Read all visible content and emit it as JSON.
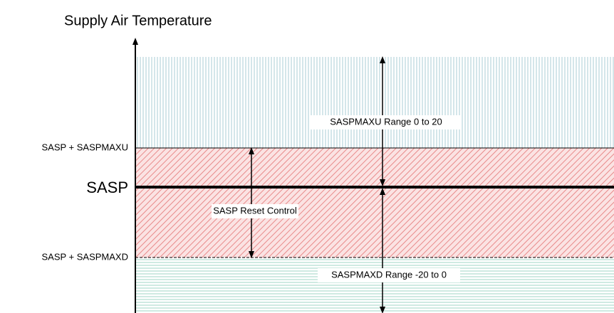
{
  "title": "Supply Air Temperature",
  "levels": {
    "upper": "SASP + SASPMAXU",
    "setpoint": "SASP",
    "lower": "SASP + SASPMAXD"
  },
  "annotations": {
    "upper_range": "SASPMAXU Range 0 to 20",
    "reset": "SASP Reset Control",
    "lower_range": "SASPMAXD Range -20 to 0"
  }
}
